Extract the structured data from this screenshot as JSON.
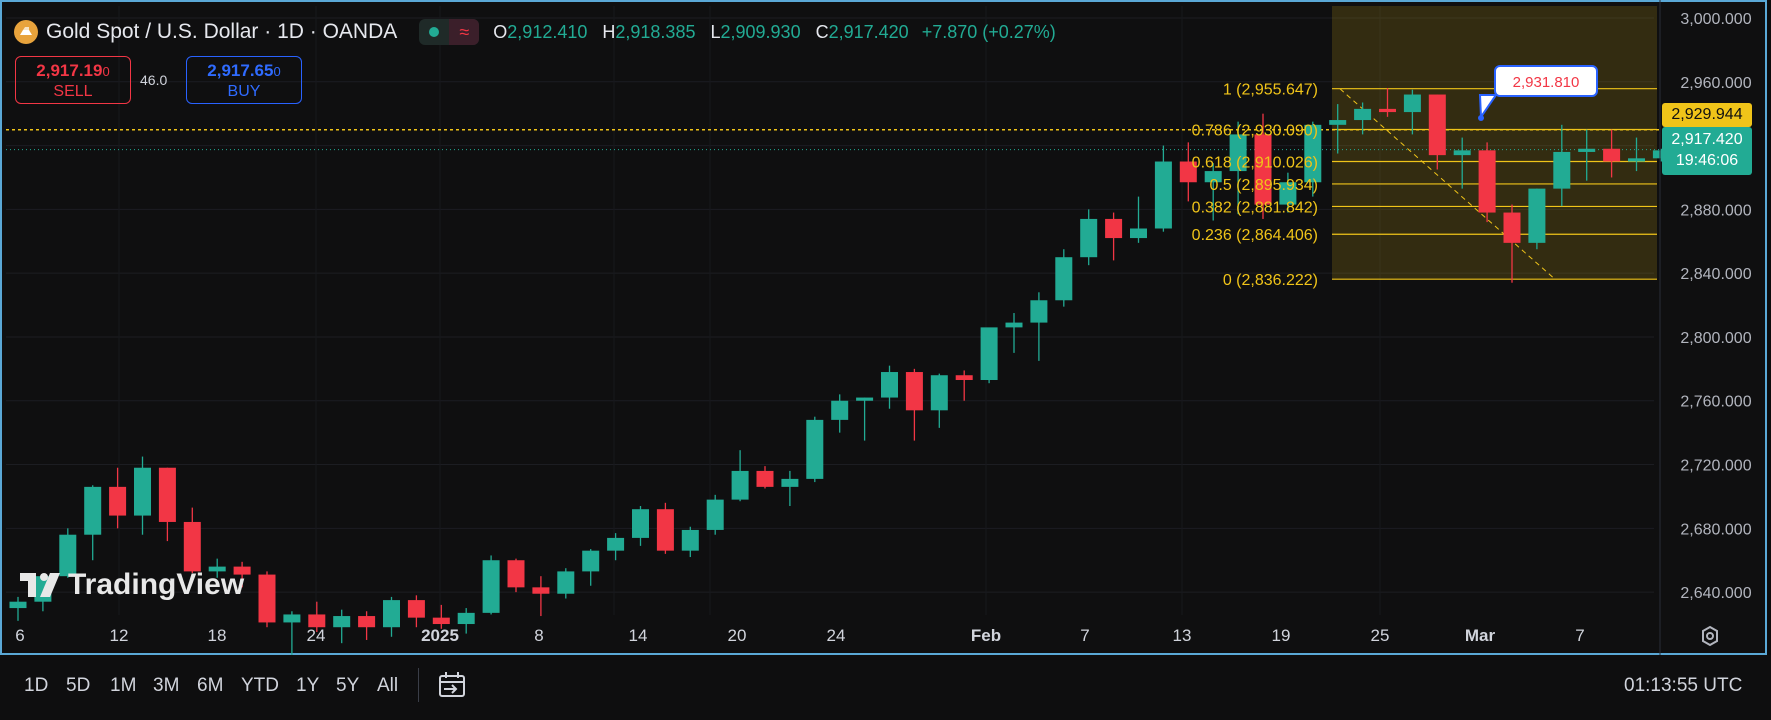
{
  "header": {
    "symbol": "Gold Spot / U.S. Dollar · 1D · OANDA",
    "open_label": "O",
    "open": "2,912.410",
    "high_label": "H",
    "high": "2,918.385",
    "low_label": "L",
    "low": "2,909.930",
    "close_label": "C",
    "close": "2,917.420",
    "change": "+7.870 (+0.27%)"
  },
  "trade": {
    "sell_price": "2,917.19",
    "sell_super": "0",
    "sell_label": "SELL",
    "buy_price": "2,917.65",
    "buy_super": "0",
    "buy_label": "BUY",
    "spread": "46.0"
  },
  "watermark": "TradingView",
  "price_axis": {
    "ticks": [
      "3,000.000",
      "2,960.000",
      "2,920.000",
      "2,880.000",
      "2,840.000",
      "2,800.000",
      "2,760.000",
      "2,720.000",
      "2,680.000",
      "2,640.000"
    ],
    "alert_price": "2,929.944",
    "last_price": "2,917.420",
    "countdown": "19:46:06"
  },
  "time_axis": [
    "6",
    "12",
    "18",
    "24",
    "2025",
    "8",
    "14",
    "20",
    "24",
    "Feb",
    "7",
    "13",
    "19",
    "25",
    "Mar",
    "7"
  ],
  "fib": {
    "levels": [
      {
        "label": "1 (2,955.647)",
        "value": 2955.647
      },
      {
        "label": "0.786 (2,930.090)",
        "value": 2930.09
      },
      {
        "label": "0.618 (2,910.026)",
        "value": 2910.026
      },
      {
        "label": "0.5 (2,895.934)",
        "value": 2895.934
      },
      {
        "label": "0.382 (2,881.842)",
        "value": 2881.842
      },
      {
        "label": "0.236 (2,864.406)",
        "value": 2864.406
      },
      {
        "label": "0 (2,836.222)",
        "value": 2836.222
      }
    ]
  },
  "callout": "2,931.810",
  "ranges": [
    "1D",
    "5D",
    "1M",
    "3M",
    "6M",
    "YTD",
    "1Y",
    "5Y",
    "All"
  ],
  "clock": "01:13:55 UTC",
  "colors": {
    "up": "#22ab94",
    "down": "#f23645",
    "fib": "#f0c419",
    "accent": "#2962ff"
  },
  "chart_data": {
    "type": "candlestick",
    "title": "Gold Spot / U.S. Dollar · 1D · OANDA",
    "ylim": [
      2615,
      3005
    ],
    "candles": [
      [
        2630,
        2637,
        2622,
        2634
      ],
      [
        2634,
        2651,
        2628,
        2650
      ],
      [
        2650,
        2680,
        2649,
        2676
      ],
      [
        2676,
        2707,
        2660,
        2706
      ],
      [
        2706,
        2718,
        2680,
        2688
      ],
      [
        2688,
        2725,
        2676,
        2718
      ],
      [
        2718,
        2718,
        2672,
        2684
      ],
      [
        2684,
        2693,
        2652,
        2653
      ],
      [
        2653,
        2661,
        2649,
        2656
      ],
      [
        2656,
        2659,
        2643,
        2651
      ],
      [
        2651,
        2653,
        2618,
        2621
      ],
      [
        2621,
        2628,
        2600,
        2626
      ],
      [
        2626,
        2634,
        2615,
        2618
      ],
      [
        2618,
        2629,
        2608,
        2625
      ],
      [
        2625,
        2628,
        2610,
        2618
      ],
      [
        2618,
        2637,
        2612,
        2635
      ],
      [
        2635,
        2638,
        2618,
        2624
      ],
      [
        2624,
        2632,
        2617,
        2620
      ],
      [
        2620,
        2630,
        2614,
        2627
      ],
      [
        2627,
        2663,
        2626,
        2660
      ],
      [
        2660,
        2661,
        2640,
        2643
      ],
      [
        2643,
        2650,
        2625,
        2639
      ],
      [
        2639,
        2655,
        2636,
        2653
      ],
      [
        2653,
        2667,
        2644,
        2666
      ],
      [
        2666,
        2677,
        2660,
        2674
      ],
      [
        2674,
        2694,
        2669,
        2692
      ],
      [
        2692,
        2696,
        2664,
        2666
      ],
      [
        2666,
        2681,
        2662,
        2679
      ],
      [
        2679,
        2701,
        2676,
        2698
      ],
      [
        2698,
        2729,
        2697,
        2716
      ],
      [
        2716,
        2719,
        2705,
        2706
      ],
      [
        2706,
        2716,
        2694,
        2711
      ],
      [
        2711,
        2750,
        2709,
        2748
      ],
      [
        2748,
        2764,
        2740,
        2760
      ],
      [
        2760,
        2762,
        2735,
        2762
      ],
      [
        2762,
        2782,
        2755,
        2778
      ],
      [
        2778,
        2780,
        2735,
        2754
      ],
      [
        2754,
        2777,
        2743,
        2776
      ],
      [
        2776,
        2779,
        2760,
        2773
      ],
      [
        2773,
        2805,
        2771,
        2806
      ],
      [
        2806,
        2815,
        2790,
        2809
      ],
      [
        2809,
        2828,
        2785,
        2823
      ],
      [
        2823,
        2855,
        2819,
        2850
      ],
      [
        2850,
        2880,
        2845,
        2874
      ],
      [
        2874,
        2878,
        2848,
        2862
      ],
      [
        2862,
        2888,
        2859,
        2868
      ],
      [
        2868,
        2920,
        2866,
        2910
      ],
      [
        2910,
        2922,
        2885,
        2897
      ],
      [
        2897,
        2909,
        2873,
        2904
      ],
      [
        2904,
        2935,
        2877,
        2927
      ],
      [
        2927,
        2940,
        2874,
        2883
      ],
      [
        2883,
        2903,
        2878,
        2897
      ],
      [
        2897,
        2935,
        2888,
        2933
      ],
      [
        2933,
        2946,
        2915,
        2936
      ],
      [
        2936,
        2947,
        2927,
        2943
      ],
      [
        2943,
        2956,
        2938,
        2941
      ],
      [
        2941,
        2955,
        2927,
        2952
      ],
      [
        2952,
        2952,
        2905,
        2914
      ],
      [
        2914,
        2925,
        2893,
        2917
      ],
      [
        2917,
        2922,
        2872,
        2878
      ],
      [
        2878,
        2883,
        2834,
        2859
      ],
      [
        2859,
        2893,
        2855,
        2893
      ],
      [
        2893,
        2933,
        2882,
        2916
      ],
      [
        2916,
        2930,
        2898,
        2918
      ],
      [
        2918,
        2930,
        2900,
        2910
      ],
      [
        2910,
        2925,
        2904,
        2912
      ],
      [
        2912,
        2918,
        2910,
        2917
      ]
    ]
  }
}
